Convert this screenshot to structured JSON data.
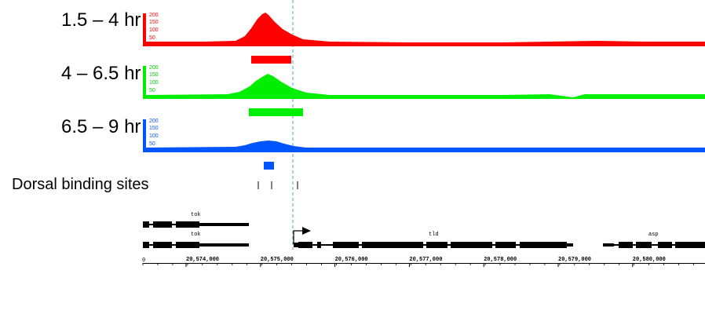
{
  "tracks": [
    {
      "label": "1.5 – 4 hr",
      "color": "#ff0000",
      "ticks": [
        "200",
        "150",
        "100",
        "50"
      ]
    },
    {
      "label": "4 – 6.5 hr",
      "color": "#00ee00",
      "ticks": [
        "200",
        "150",
        "100",
        "50"
      ]
    },
    {
      "label": "6.5 – 9 hr",
      "color": "#0055ff",
      "ticks": [
        "200",
        "150",
        "100",
        "50"
      ]
    }
  ],
  "binding_label": "Dorsal binding sites",
  "genes": [
    {
      "name": "tok"
    },
    {
      "name": "tok"
    },
    {
      "name": "tld"
    },
    {
      "name": "asp"
    }
  ],
  "ruler": {
    "ticks": [
      "20,574,000",
      "20,575,000",
      "20,576,000",
      "20,577,000",
      "20,578,000",
      "20,579,000",
      "20,580,000"
    ]
  }
}
